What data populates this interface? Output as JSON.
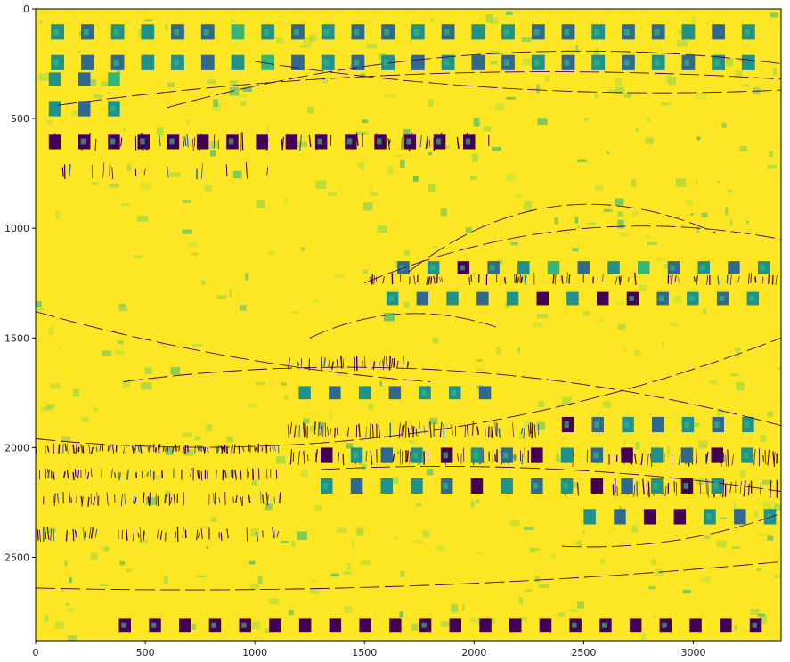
{
  "chart_data": {
    "type": "heatmap",
    "title": "",
    "xlabel": "",
    "ylabel": "",
    "colormap": "viridis",
    "colors": {
      "background": "#fde725",
      "dark": "#440154",
      "blue": "#31688e",
      "teal": "#21918c",
      "green": "#35b779",
      "light_green": "#8fd744",
      "outline": "#000000"
    },
    "xlim": [
      0,
      3400
    ],
    "ylim": [
      2880,
      0
    ],
    "x_ticks": [
      0,
      500,
      1000,
      1500,
      2000,
      2500,
      3000
    ],
    "x_tick_labels": [
      "0",
      "500",
      "1000",
      "1500",
      "2000",
      "2500",
      "3000"
    ],
    "y_ticks": [
      0,
      500,
      1000,
      1500,
      2000,
      2500
    ],
    "y_tick_labels": [
      "0",
      "500",
      "1000",
      "1500",
      "2000",
      "2500"
    ],
    "grid": false,
    "legend": "none",
    "block_rows": [
      {
        "y0": 70,
        "y1": 140,
        "x0": 70,
        "x1": 3390,
        "step": 137,
        "width": 60,
        "pattern": [
          "teal",
          "blue",
          "teal",
          "teal",
          "blue",
          "blue",
          "green",
          "teal",
          "blue",
          "teal",
          "blue",
          "blue",
          "teal",
          "blue",
          "teal",
          "teal",
          "blue",
          "blue",
          "teal",
          "blue",
          "blue",
          "teal",
          "blue",
          "teal"
        ]
      },
      {
        "y0": 210,
        "y1": 280,
        "x0": 70,
        "x1": 3390,
        "step": 137,
        "width": 60,
        "pattern": [
          "teal",
          "blue",
          "blue",
          "teal",
          "teal",
          "blue",
          "teal",
          "green",
          "blue",
          "teal",
          "blue",
          "teal",
          "blue",
          "teal",
          "blue",
          "blue",
          "teal",
          "blue",
          "teal",
          "blue",
          "teal",
          "blue",
          "teal",
          "teal"
        ]
      },
      {
        "y0": 290,
        "y1": 350,
        "x0": 60,
        "x1": 500,
        "step": 135,
        "width": 55,
        "pattern": [
          "teal",
          "blue",
          "green",
          "teal"
        ]
      },
      {
        "y0": 420,
        "y1": 490,
        "x0": 60,
        "x1": 500,
        "step": 135,
        "width": 55,
        "pattern": [
          "teal",
          "blue",
          "teal",
          "green"
        ]
      },
      {
        "y0": 570,
        "y1": 640,
        "x0": 60,
        "x1": 2100,
        "step": 135,
        "width": 55,
        "pattern": [
          "dark",
          "dark",
          "dark",
          "dark",
          "dark",
          "dark",
          "dark",
          "dark",
          "dark",
          "dark",
          "dark",
          "dark",
          "dark",
          "dark",
          "dark",
          "dark"
        ]
      },
      {
        "y0": 1150,
        "y1": 1210,
        "x0": 1650,
        "x1": 3390,
        "step": 137,
        "width": 55,
        "pattern": [
          "blue",
          "teal",
          "dark",
          "blue",
          "teal",
          "green",
          "blue",
          "teal",
          "green",
          "blue",
          "teal",
          "blue",
          "teal"
        ]
      },
      {
        "y0": 1290,
        "y1": 1350,
        "x0": 1600,
        "x1": 3390,
        "step": 137,
        "width": 55,
        "pattern": [
          "teal",
          "blue",
          "teal",
          "blue",
          "teal",
          "dark",
          "teal",
          "dark",
          "dark",
          "blue",
          "teal",
          "blue",
          "teal",
          "teal"
        ]
      },
      {
        "y0": 1720,
        "y1": 1780,
        "x0": 1200,
        "x1": 2200,
        "step": 137,
        "width": 55,
        "pattern": [
          "teal",
          "blue",
          "teal",
          "blue",
          "teal",
          "teal",
          "blue",
          "teal"
        ]
      },
      {
        "y0": 1860,
        "y1": 1930,
        "x0": 2400,
        "x1": 3390,
        "step": 137,
        "width": 55,
        "pattern": [
          "dark",
          "blue",
          "teal",
          "blue",
          "teal",
          "blue",
          "teal",
          "dark"
        ]
      },
      {
        "y0": 2000,
        "y1": 2070,
        "x0": 1300,
        "x1": 3390,
        "step": 137,
        "width": 55,
        "pattern": [
          "dark",
          "teal",
          "blue",
          "teal",
          "dark",
          "teal",
          "blue",
          "dark",
          "teal",
          "blue",
          "dark",
          "teal",
          "blue",
          "dark",
          "teal"
        ]
      },
      {
        "y0": 2140,
        "y1": 2210,
        "x0": 1300,
        "x1": 3390,
        "step": 137,
        "width": 55,
        "pattern": [
          "teal",
          "blue",
          "teal",
          "teal",
          "blue",
          "dark",
          "teal",
          "blue",
          "teal",
          "dark",
          "blue",
          "teal",
          "dark",
          "teal"
        ]
      },
      {
        "y0": 2280,
        "y1": 2350,
        "x0": 2500,
        "x1": 3390,
        "step": 137,
        "width": 55,
        "pattern": [
          "teal",
          "blue",
          "dark",
          "dark",
          "teal",
          "blue",
          "teal"
        ]
      },
      {
        "y0": 2780,
        "y1": 2840,
        "x0": 380,
        "x1": 3390,
        "step": 137,
        "width": 55,
        "pattern": [
          "dark",
          "dark",
          "dark",
          "dark",
          "dark",
          "dark",
          "dark",
          "dark",
          "dark",
          "dark",
          "dark",
          "dark",
          "dark",
          "dark",
          "dark",
          "dark",
          "dark",
          "dark",
          "dark",
          "dark",
          "dark",
          "dark"
        ]
      }
    ],
    "stripe_bands": [
      {
        "y0": 1980,
        "y1": 2030,
        "x0": 0,
        "x1": 1120,
        "density": 0.55
      },
      {
        "y0": 2090,
        "y1": 2150,
        "x0": 0,
        "x1": 1120,
        "density": 0.45
      },
      {
        "y0": 2200,
        "y1": 2270,
        "x0": 0,
        "x1": 1120,
        "density": 0.35
      },
      {
        "y0": 2360,
        "y1": 2430,
        "x0": 0,
        "x1": 1120,
        "density": 0.4
      },
      {
        "y0": 1880,
        "y1": 1960,
        "x0": 1150,
        "x1": 2300,
        "density": 0.45
      },
      {
        "y0": 2000,
        "y1": 2080,
        "x0": 1150,
        "x1": 2300,
        "density": 0.35
      },
      {
        "y0": 2000,
        "y1": 2090,
        "x0": 2400,
        "x1": 3390,
        "density": 0.4
      },
      {
        "y0": 2140,
        "y1": 2230,
        "x0": 2400,
        "x1": 3390,
        "density": 0.4
      },
      {
        "y0": 560,
        "y1": 650,
        "x0": 60,
        "x1": 2100,
        "density": 0.2
      },
      {
        "y0": 700,
        "y1": 780,
        "x0": 60,
        "x1": 1200,
        "density": 0.2
      },
      {
        "y0": 1580,
        "y1": 1650,
        "x0": 1150,
        "x1": 1700,
        "density": 0.35
      },
      {
        "y0": 1200,
        "y1": 1260,
        "x0": 1500,
        "x1": 3390,
        "density": 0.3
      }
    ],
    "curves": [
      {
        "from": [
          0,
          1960
        ],
        "to": [
          3400,
          1500
        ],
        "bend": 0.12
      },
      {
        "from": [
          400,
          1700
        ],
        "to": [
          3400,
          1900
        ],
        "bend": -0.1
      },
      {
        "from": [
          1500,
          1250
        ],
        "to": [
          3400,
          1050
        ],
        "bend": -0.15
      },
      {
        "from": [
          1700,
          1200
        ],
        "to": [
          3100,
          1020
        ],
        "bend": -0.3
      },
      {
        "from": [
          0,
          1380
        ],
        "to": [
          1800,
          1700
        ],
        "bend": 0.05
      },
      {
        "from": [
          2400,
          2450
        ],
        "to": [
          3400,
          2300
        ],
        "bend": 0.1
      },
      {
        "from": [
          1300,
          2100
        ],
        "to": [
          3400,
          2200
        ],
        "bend": -0.05
      },
      {
        "from": [
          100,
          440
        ],
        "to": [
          3400,
          320
        ],
        "bend": -0.05
      },
      {
        "from": [
          600,
          450
        ],
        "to": [
          3400,
          250
        ],
        "bend": -0.1
      },
      {
        "from": [
          1000,
          240
        ],
        "to": [
          3400,
          370
        ],
        "bend": 0.05
      },
      {
        "from": [
          1250,
          1500
        ],
        "to": [
          2100,
          1450
        ],
        "bend": -0.2
      },
      {
        "from": [
          0,
          2640
        ],
        "to": [
          3400,
          2520
        ],
        "bend": 0.03
      }
    ]
  }
}
